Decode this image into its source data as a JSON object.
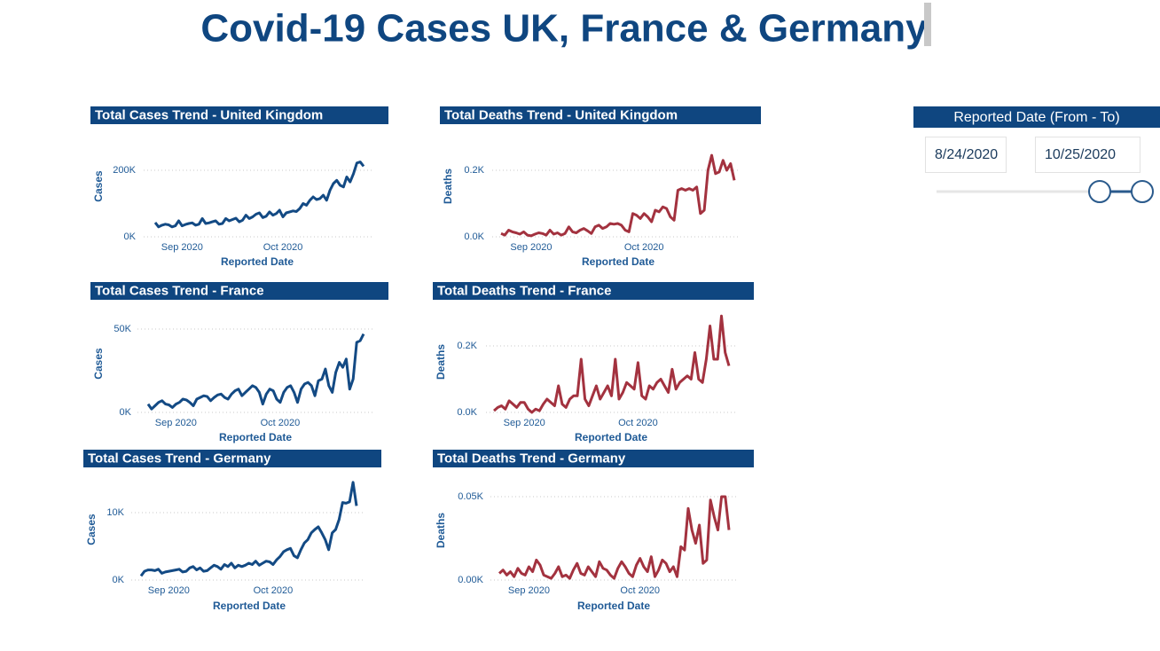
{
  "header": {
    "title": "Covid-19 Cases UK, France & Germany"
  },
  "slicer": {
    "title": "Reported Date (From - To)",
    "from": "8/24/2020",
    "to": "10/25/2020"
  },
  "chart_data": [
    {
      "type": "line",
      "title": "Total Cases Trend - United Kingdom",
      "x_label": "Reported Date",
      "y_label": "Cases",
      "color": "#134a84",
      "categories": [
        null,
        null,
        null,
        null,
        null,
        null,
        null,
        null,
        "Sep 2020",
        null,
        null,
        null,
        null,
        null,
        null,
        null,
        null,
        null,
        null,
        null,
        null,
        null,
        null,
        null,
        null,
        null,
        null,
        null,
        null,
        null,
        null,
        null,
        null,
        null,
        null,
        null,
        null,
        null,
        "Oct 2020",
        null,
        null,
        null,
        null,
        null,
        null,
        null,
        null,
        null,
        null,
        null,
        null,
        null,
        null,
        null,
        null,
        null,
        null,
        null,
        null,
        null,
        null,
        null,
        null
      ],
      "values": [
        43000,
        30000,
        35000,
        38000,
        36000,
        30000,
        33000,
        48000,
        33000,
        37000,
        40000,
        42000,
        35000,
        38000,
        55000,
        40000,
        42000,
        45000,
        48000,
        38000,
        40000,
        55000,
        48000,
        52000,
        56000,
        45000,
        50000,
        65000,
        55000,
        60000,
        68000,
        72000,
        58000,
        62000,
        75000,
        65000,
        70000,
        80000,
        60000,
        72000,
        75000,
        78000,
        76000,
        85000,
        100000,
        95000,
        110000,
        120000,
        112000,
        115000,
        125000,
        110000,
        140000,
        160000,
        170000,
        155000,
        150000,
        180000,
        165000,
        190000,
        222000,
        225000,
        212000
      ],
      "ylim": [
        0,
        240000
      ],
      "yticks": [
        {
          "value": 0,
          "label": "0K"
        },
        {
          "value": 200000,
          "label": "200K"
        }
      ],
      "grid": true
    },
    {
      "type": "line",
      "title": "Total Deaths Trend - United Kingdom",
      "x_label": "Reported Date",
      "y_label": "Deaths",
      "color": "#a3323f",
      "categories": [
        null,
        null,
        null,
        null,
        null,
        null,
        null,
        null,
        "Sep 2020",
        null,
        null,
        null,
        null,
        null,
        null,
        null,
        null,
        null,
        null,
        null,
        null,
        null,
        null,
        null,
        null,
        null,
        null,
        null,
        null,
        null,
        null,
        null,
        null,
        null,
        null,
        null,
        null,
        null,
        "Oct 2020",
        null,
        null,
        null,
        null,
        null,
        null,
        null,
        null,
        null,
        null,
        null,
        null,
        null,
        null,
        null,
        null,
        null,
        null,
        null,
        null,
        null,
        null,
        null,
        null
      ],
      "values": [
        10,
        5,
        20,
        15,
        12,
        8,
        15,
        5,
        3,
        8,
        12,
        10,
        5,
        20,
        8,
        12,
        5,
        10,
        30,
        15,
        12,
        20,
        25,
        18,
        10,
        30,
        35,
        25,
        30,
        40,
        38,
        40,
        35,
        20,
        15,
        70,
        65,
        55,
        70,
        60,
        45,
        80,
        75,
        90,
        85,
        60,
        50,
        140,
        145,
        140,
        145,
        140,
        150,
        70,
        80,
        200,
        245,
        190,
        195,
        230,
        200,
        220,
        170
      ],
      "ylim": [
        0,
        250
      ],
      "yticks": [
        {
          "value": 0,
          "label": "0.0K"
        },
        {
          "value": 200,
          "label": "0.2K"
        }
      ],
      "grid": true
    },
    {
      "type": "line",
      "title": "Total Cases Trend - France",
      "x_label": "Reported Date",
      "y_label": "Cases",
      "color": "#134a84",
      "categories": [
        null,
        null,
        null,
        null,
        null,
        null,
        null,
        null,
        "Sep 2020",
        null,
        null,
        null,
        null,
        null,
        null,
        null,
        null,
        null,
        null,
        null,
        null,
        null,
        null,
        null,
        null,
        null,
        null,
        null,
        null,
        null,
        null,
        null,
        null,
        null,
        null,
        null,
        null,
        null,
        "Oct 2020",
        null,
        null,
        null,
        null,
        null,
        null,
        null,
        null,
        null,
        null,
        null,
        null,
        null,
        null,
        null,
        null,
        null,
        null,
        null,
        null,
        null,
        null,
        null,
        null
      ],
      "values": [
        5000,
        2000,
        4000,
        6000,
        7000,
        5000,
        4500,
        3000,
        5000,
        6000,
        8000,
        7500,
        6000,
        4000,
        8000,
        9000,
        10000,
        9500,
        7000,
        9000,
        10500,
        11000,
        9000,
        8000,
        11000,
        13000,
        14000,
        10000,
        12000,
        14000,
        16000,
        15000,
        12000,
        5000,
        11000,
        14000,
        13000,
        8000,
        6000,
        12000,
        15000,
        16000,
        12000,
        6000,
        14000,
        17000,
        18000,
        16000,
        10000,
        19000,
        20000,
        26000,
        16000,
        12000,
        24000,
        30000,
        27000,
        32000,
        14000,
        20000,
        42000,
        43000,
        47000
      ],
      "ylim": [
        0,
        55000
      ],
      "yticks": [
        {
          "value": 0,
          "label": "0K"
        },
        {
          "value": 50000,
          "label": "50K"
        }
      ],
      "grid": true
    },
    {
      "type": "line",
      "title": "Total Deaths Trend - France",
      "x_label": "Reported Date",
      "y_label": "Deaths",
      "color": "#a3323f",
      "categories": [
        null,
        null,
        null,
        null,
        null,
        null,
        null,
        null,
        "Sep 2020",
        null,
        null,
        null,
        null,
        null,
        null,
        null,
        null,
        null,
        null,
        null,
        null,
        null,
        null,
        null,
        null,
        null,
        null,
        null,
        null,
        null,
        null,
        null,
        null,
        null,
        null,
        null,
        null,
        null,
        "Oct 2020",
        null,
        null,
        null,
        null,
        null,
        null,
        null,
        null,
        null,
        null,
        null,
        null,
        null,
        null,
        null,
        null,
        null,
        null,
        null,
        null,
        null,
        null,
        null,
        null
      ],
      "values": [
        5,
        15,
        20,
        10,
        35,
        25,
        15,
        30,
        30,
        10,
        0,
        10,
        5,
        25,
        40,
        30,
        20,
        80,
        25,
        15,
        40,
        50,
        50,
        160,
        40,
        20,
        50,
        80,
        40,
        60,
        80,
        50,
        160,
        40,
        60,
        90,
        80,
        70,
        150,
        50,
        40,
        80,
        70,
        90,
        100,
        80,
        60,
        130,
        70,
        90,
        100,
        110,
        100,
        180,
        100,
        90,
        160,
        260,
        160,
        160,
        290,
        180,
        140
      ],
      "ylim": [
        0,
        300
      ],
      "yticks": [
        {
          "value": 0,
          "label": "0.0K"
        },
        {
          "value": 200,
          "label": "0.2K"
        }
      ],
      "grid": true
    },
    {
      "type": "line",
      "title": "Total Cases Trend - Germany",
      "x_label": "Reported Date",
      "y_label": "Cases",
      "color": "#134a84",
      "categories": [
        null,
        null,
        null,
        null,
        null,
        null,
        null,
        null,
        "Sep 2020",
        null,
        null,
        null,
        null,
        null,
        null,
        null,
        null,
        null,
        null,
        null,
        null,
        null,
        null,
        null,
        null,
        null,
        null,
        null,
        null,
        null,
        null,
        null,
        null,
        null,
        null,
        null,
        null,
        null,
        "Oct 2020",
        null,
        null,
        null,
        null,
        null,
        null,
        null,
        null,
        null,
        null,
        null,
        null,
        null,
        null,
        null,
        null,
        null,
        null,
        null,
        null,
        null,
        null,
        null,
        null
      ],
      "values": [
        600,
        1300,
        1500,
        1500,
        1400,
        1600,
        1000,
        1200,
        1300,
        1400,
        1500,
        1600,
        1200,
        1300,
        1800,
        2000,
        1500,
        1800,
        1300,
        1400,
        1800,
        2200,
        2000,
        1600,
        2300,
        2000,
        2500,
        1800,
        2200,
        2000,
        2200,
        2500,
        2300,
        2800,
        2200,
        2500,
        2800,
        2700,
        2300,
        3000,
        3500,
        4200,
        4500,
        4700,
        3600,
        3300,
        4500,
        5500,
        6000,
        7000,
        7500,
        7900,
        7000,
        6000,
        4500,
        7000,
        7500,
        9000,
        11500,
        11400,
        11600,
        14500,
        11000
      ],
      "ylim": [
        0,
        15000
      ],
      "yticks": [
        {
          "value": 0,
          "label": "0K"
        },
        {
          "value": 10000,
          "label": "10K"
        }
      ],
      "grid": true
    },
    {
      "type": "line",
      "title": "Total Deaths Trend - Germany",
      "x_label": "Reported Date",
      "y_label": "Deaths",
      "color": "#a3323f",
      "categories": [
        null,
        null,
        null,
        null,
        null,
        null,
        null,
        null,
        "Sep 2020",
        null,
        null,
        null,
        null,
        null,
        null,
        null,
        null,
        null,
        null,
        null,
        null,
        null,
        null,
        null,
        null,
        null,
        null,
        null,
        null,
        null,
        null,
        null,
        null,
        null,
        null,
        null,
        null,
        null,
        "Oct 2020",
        null,
        null,
        null,
        null,
        null,
        null,
        null,
        null,
        null,
        null,
        null,
        null,
        null,
        null,
        null,
        null,
        null,
        null,
        null,
        null,
        null,
        null,
        null,
        null
      ],
      "values": [
        4,
        6,
        3,
        5,
        2,
        7,
        4,
        3,
        8,
        5,
        12,
        9,
        3,
        2,
        1,
        4,
        8,
        2,
        3,
        1,
        6,
        10,
        4,
        3,
        8,
        5,
        2,
        11,
        7,
        6,
        3,
        1,
        7,
        11,
        8,
        4,
        2,
        9,
        13,
        8,
        5,
        14,
        2,
        6,
        12,
        10,
        5,
        8,
        2,
        20,
        18,
        43,
        30,
        22,
        33,
        10,
        12,
        48,
        38,
        30,
        50,
        50,
        30
      ],
      "ylim": [
        0,
        55
      ],
      "yticks": [
        {
          "value": 0,
          "label": "0.00K"
        },
        {
          "value": 50,
          "label": "0.05K"
        }
      ],
      "grid": true
    }
  ]
}
